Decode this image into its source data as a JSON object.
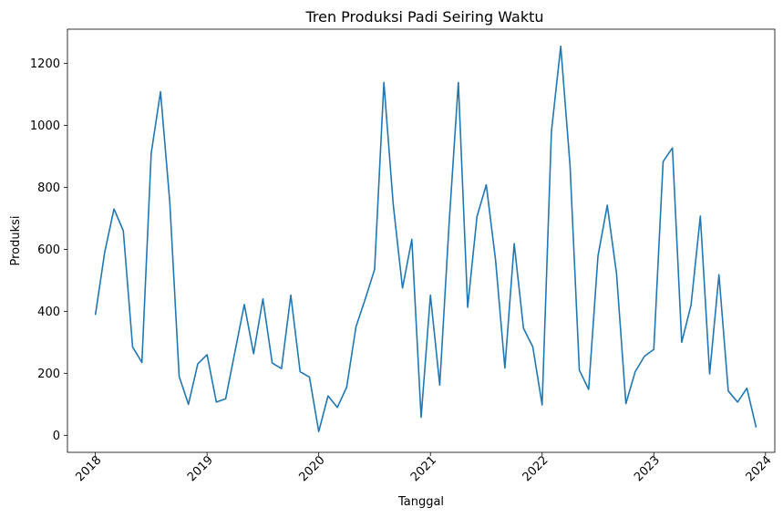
{
  "chart_data": {
    "type": "line",
    "title": "Tren Produksi Padi Seiring Waktu",
    "xlabel": "Tanggal",
    "ylabel": "Produksi",
    "grid": false,
    "line_color": "#1f77b4",
    "x_start": "2018-01",
    "x_ticks": [
      "2018",
      "2019",
      "2020",
      "2021",
      "2022",
      "2023",
      "2024"
    ],
    "xlim": [
      "2017-10",
      "2024-02"
    ],
    "y_ticks": [
      0,
      200,
      400,
      600,
      800,
      1000,
      1200
    ],
    "ylim": [
      -55,
      1310
    ],
    "series": [
      {
        "x": [
          "2018-01",
          "2018-02",
          "2018-03",
          "2018-04",
          "2018-05",
          "2018-06",
          "2018-07",
          "2018-08",
          "2018-09",
          "2018-10",
          "2018-11",
          "2018-12",
          "2019-01",
          "2019-02",
          "2019-03",
          "2019-04",
          "2019-05",
          "2019-06",
          "2019-07",
          "2019-08",
          "2019-09",
          "2019-10",
          "2019-11",
          "2019-12",
          "2020-01",
          "2020-02",
          "2020-03",
          "2020-04",
          "2020-05",
          "2020-06",
          "2020-07",
          "2020-08",
          "2020-09",
          "2020-10",
          "2020-11",
          "2020-12",
          "2021-01",
          "2021-02",
          "2021-03",
          "2021-04",
          "2021-05",
          "2021-06",
          "2021-07",
          "2021-08",
          "2021-09",
          "2021-10",
          "2021-11",
          "2021-12",
          "2022-01",
          "2022-02",
          "2022-03",
          "2022-04",
          "2022-05",
          "2022-06",
          "2022-07",
          "2022-08",
          "2022-09",
          "2022-10",
          "2022-11",
          "2022-12",
          "2023-01",
          "2023-02",
          "2023-03",
          "2023-04",
          "2023-05",
          "2023-06",
          "2023-07",
          "2023-08",
          "2023-09",
          "2023-10",
          "2023-11",
          "2023-12"
        ],
        "values": [
          388,
          590,
          730,
          660,
          285,
          235,
          910,
          1108,
          750,
          190,
          100,
          230,
          260,
          107,
          118,
          270,
          422,
          263,
          440,
          233,
          215,
          452,
          205,
          188,
          12,
          127,
          90,
          155,
          350,
          440,
          535,
          1138,
          745,
          475,
          632,
          58,
          452,
          162,
          680,
          1138,
          413,
          705,
          808,
          565,
          217,
          618,
          345,
          285,
          98,
          980,
          1255,
          870,
          210,
          148,
          578,
          742,
          520,
          102,
          205,
          255,
          277,
          883,
          927,
          300,
          420,
          707,
          198,
          518,
          143,
          107,
          152,
          25
        ]
      }
    ]
  }
}
